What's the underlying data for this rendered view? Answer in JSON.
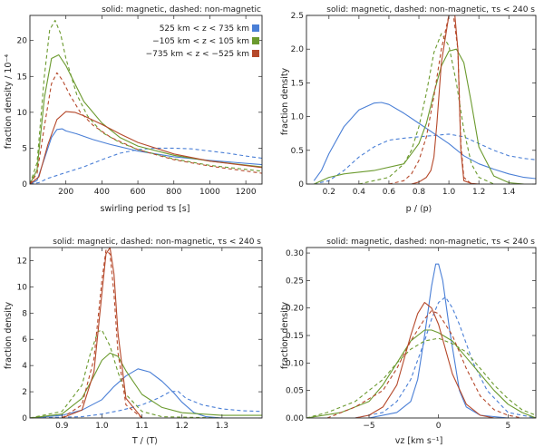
{
  "colors": {
    "blue": "#4a7fd6",
    "green": "#6b9a2e",
    "red": "#b5482a",
    "ink": "#222222"
  },
  "legend": {
    "items": [
      {
        "label": "525 km < z < 735 km",
        "color": "#4a7fd6"
      },
      {
        "label": "−105 km < z < 105 km",
        "color": "#6b9a2e"
      },
      {
        "label": "−735 km < z < −525 km",
        "color": "#b5482a"
      }
    ]
  },
  "chart_data": [
    {
      "type": "line",
      "title": "solid: magnetic, dashed: non-magnetic",
      "xlabel": "swirling period τs [s]",
      "ylabel": "fraction density / 10⁻⁴",
      "xlim": [
        0,
        1290
      ],
      "ylim": [
        0,
        23.5
      ],
      "xticks": [
        200,
        400,
        600,
        800,
        1000,
        1200
      ],
      "xtick_labels": [
        "200",
        "400",
        "600",
        "800",
        "1000",
        "1200"
      ],
      "yticks": [
        0,
        5,
        10,
        15,
        20
      ],
      "ytick_labels": [
        "0",
        "5",
        "10",
        "15",
        "20"
      ],
      "series": [
        {
          "name": "525 km < z < 735 km (magnetic)",
          "color": "blue",
          "dashed": false,
          "x": [
            0,
            40,
            80,
            120,
            150,
            180,
            200,
            260,
            350,
            450,
            600,
            800,
            1000,
            1290
          ],
          "y": [
            0,
            0.5,
            3.5,
            6.5,
            7.6,
            7.7,
            7.4,
            7.0,
            6.2,
            5.5,
            4.6,
            3.8,
            3.3,
            2.7
          ]
        },
        {
          "name": "525 km < z < 735 km (non-magnetic)",
          "color": "blue",
          "dashed": true,
          "x": [
            0,
            50,
            100,
            200,
            300,
            400,
            500,
            600,
            700,
            800,
            900,
            1000,
            1100,
            1200,
            1290
          ],
          "y": [
            0,
            0.2,
            0.8,
            1.6,
            2.4,
            3.4,
            4.3,
            4.8,
            5.0,
            5.0,
            4.9,
            4.6,
            4.3,
            3.9,
            3.6
          ]
        },
        {
          "name": "−105 km < z < 105 km (magnetic)",
          "color": "green",
          "dashed": false,
          "x": [
            0,
            40,
            80,
            120,
            160,
            200,
            250,
            300,
            400,
            500,
            600,
            800,
            1000,
            1290
          ],
          "y": [
            0,
            2.0,
            12.0,
            17.5,
            18.0,
            16.5,
            14.0,
            11.5,
            8.5,
            6.5,
            5.3,
            4.0,
            3.2,
            2.4
          ]
        },
        {
          "name": "−105 km < z < 105 km (non-magnetic)",
          "color": "green",
          "dashed": true,
          "x": [
            0,
            40,
            80,
            110,
            140,
            170,
            200,
            260,
            320,
            400,
            500,
            600,
            800,
            1000,
            1290
          ],
          "y": [
            0,
            3.0,
            15.0,
            21.5,
            22.8,
            21.0,
            17.5,
            12.5,
            9.5,
            7.2,
            5.8,
            4.8,
            3.5,
            2.6,
            1.8
          ]
        },
        {
          "name": "−735 km < z < −525 km (magnetic)",
          "color": "red",
          "dashed": false,
          "x": [
            0,
            50,
            100,
            150,
            200,
            250,
            300,
            400,
            500,
            600,
            800,
            1000,
            1290
          ],
          "y": [
            0,
            1.0,
            5.5,
            9.0,
            10.1,
            10.0,
            9.5,
            8.3,
            7.0,
            5.8,
            4.2,
            3.2,
            2.3
          ]
        },
        {
          "name": "−735 km < z < −525 km (non-magnetic)",
          "color": "red",
          "dashed": true,
          "x": [
            0,
            40,
            80,
            120,
            150,
            180,
            220,
            280,
            350,
            450,
            600,
            800,
            1000,
            1290
          ],
          "y": [
            0,
            1.5,
            8.0,
            14.0,
            15.5,
            14.5,
            12.5,
            10.0,
            8.2,
            6.5,
            4.8,
            3.4,
            2.5,
            1.5
          ]
        }
      ]
    },
    {
      "type": "line",
      "title": "solid: magnetic, dashed: non-magnetic, τs < 240 s",
      "xlabel": "p / ⟨p⟩",
      "ylabel": "fraction density",
      "xlim": [
        0.05,
        1.58
      ],
      "ylim": [
        0,
        2.5
      ],
      "xticks": [
        0.2,
        0.4,
        0.6,
        0.8,
        1.0,
        1.2,
        1.4
      ],
      "xtick_labels": [
        "0.2",
        "0.4",
        "0.6",
        "0.8",
        "1.0",
        "1.2",
        "1.4"
      ],
      "yticks": [
        0,
        0.5,
        1.0,
        1.5,
        2.0,
        2.5
      ],
      "ytick_labels": [
        "0",
        "0.5",
        "1.0",
        "1.5",
        "2.0",
        "2.5"
      ],
      "series": [
        {
          "name": "blue magnetic",
          "color": "blue",
          "dashed": false,
          "x": [
            0.1,
            0.15,
            0.2,
            0.3,
            0.4,
            0.5,
            0.55,
            0.6,
            0.7,
            0.8,
            0.9,
            1.0,
            1.1,
            1.2,
            1.3,
            1.4,
            1.5,
            1.58
          ],
          "y": [
            0.05,
            0.2,
            0.45,
            0.85,
            1.1,
            1.2,
            1.21,
            1.18,
            1.05,
            0.9,
            0.75,
            0.6,
            0.42,
            0.3,
            0.22,
            0.15,
            0.1,
            0.08
          ]
        },
        {
          "name": "blue non-magnetic",
          "color": "blue",
          "dashed": true,
          "x": [
            0.1,
            0.2,
            0.3,
            0.4,
            0.5,
            0.6,
            0.7,
            0.8,
            0.9,
            1.0,
            1.1,
            1.2,
            1.3,
            1.4,
            1.5,
            1.58
          ],
          "y": [
            0.0,
            0.05,
            0.2,
            0.4,
            0.55,
            0.65,
            0.68,
            0.7,
            0.72,
            0.74,
            0.7,
            0.6,
            0.5,
            0.42,
            0.38,
            0.36
          ]
        },
        {
          "name": "green magnetic",
          "color": "green",
          "dashed": false,
          "x": [
            0.1,
            0.2,
            0.3,
            0.5,
            0.7,
            0.8,
            0.85,
            0.9,
            0.95,
            1.0,
            1.05,
            1.1,
            1.15,
            1.2,
            1.3,
            1.4,
            1.5
          ],
          "y": [
            0.0,
            0.1,
            0.15,
            0.2,
            0.3,
            0.6,
            0.9,
            1.35,
            1.75,
            1.97,
            2.0,
            1.8,
            1.2,
            0.55,
            0.12,
            0.02,
            0.0
          ]
        },
        {
          "name": "green non-magnetic",
          "color": "green",
          "dashed": true,
          "x": [
            0.4,
            0.6,
            0.7,
            0.75,
            0.8,
            0.85,
            0.9,
            0.95,
            1.0,
            1.05,
            1.1,
            1.15,
            1.2,
            1.3
          ],
          "y": [
            0.0,
            0.1,
            0.3,
            0.5,
            0.85,
            1.35,
            1.95,
            2.23,
            2.05,
            1.5,
            0.8,
            0.3,
            0.1,
            0.0
          ]
        },
        {
          "name": "red magnetic",
          "color": "red",
          "dashed": false,
          "x": [
            0.75,
            0.8,
            0.85,
            0.88,
            0.9,
            0.92,
            0.95,
            1.0,
            1.04,
            1.06,
            1.08,
            1.1,
            1.15,
            1.2
          ],
          "y": [
            0.0,
            0.03,
            0.1,
            0.2,
            0.4,
            0.9,
            1.8,
            2.5,
            2.5,
            2.0,
            0.5,
            0.05,
            0.01,
            0.0
          ]
        },
        {
          "name": "red non-magnetic",
          "color": "red",
          "dashed": true,
          "x": [
            0.6,
            0.7,
            0.75,
            0.8,
            0.85,
            0.9,
            0.95,
            1.0,
            1.03,
            1.06,
            1.08,
            1.1,
            1.15
          ],
          "y": [
            0.0,
            0.05,
            0.15,
            0.35,
            0.7,
            1.3,
            2.0,
            2.5,
            2.5,
            2.0,
            0.6,
            0.1,
            0.0
          ]
        }
      ]
    },
    {
      "type": "line",
      "title": "solid: magnetic, dashed: non-magnetic, τs < 240 s",
      "xlabel": "T / ⟨T⟩",
      "ylabel": "fraction density",
      "xlim": [
        0.82,
        1.4
      ],
      "ylim": [
        0,
        13
      ],
      "xticks": [
        0.9,
        1.0,
        1.1,
        1.2,
        1.3
      ],
      "xtick_labels": [
        "0.9",
        "1.0",
        "1.1",
        "1.2",
        "1.3"
      ],
      "yticks": [
        0,
        2,
        4,
        6,
        8,
        10,
        12
      ],
      "ytick_labels": [
        "0",
        "2",
        "4",
        "6",
        "8",
        "10",
        "12"
      ],
      "series": [
        {
          "name": "blue magnetic",
          "color": "blue",
          "dashed": false,
          "x": [
            0.82,
            0.9,
            0.95,
            1.0,
            1.03,
            1.06,
            1.09,
            1.12,
            1.15,
            1.18,
            1.2,
            1.23,
            1.26,
            1.3,
            1.4
          ],
          "y": [
            0.0,
            0.2,
            0.6,
            1.4,
            2.4,
            3.2,
            3.75,
            3.5,
            2.8,
            1.9,
            1.2,
            0.4,
            0.1,
            0.0,
            0.0
          ]
        },
        {
          "name": "blue non-magnetic",
          "color": "blue",
          "dashed": true,
          "x": [
            0.82,
            0.95,
            1.0,
            1.05,
            1.1,
            1.14,
            1.17,
            1.19,
            1.21,
            1.25,
            1.3,
            1.35,
            1.4
          ],
          "y": [
            0.0,
            0.1,
            0.3,
            0.6,
            1.0,
            1.5,
            2.0,
            2.05,
            1.5,
            1.0,
            0.7,
            0.55,
            0.5
          ]
        },
        {
          "name": "green magnetic",
          "color": "green",
          "dashed": false,
          "x": [
            0.82,
            0.9,
            0.95,
            0.98,
            1.0,
            1.02,
            1.04,
            1.06,
            1.1,
            1.15,
            1.2,
            1.3,
            1.4
          ],
          "y": [
            0.0,
            0.3,
            1.5,
            3.2,
            4.4,
            4.95,
            4.7,
            3.6,
            1.8,
            0.8,
            0.4,
            0.2,
            0.2
          ]
        },
        {
          "name": "green non-magnetic",
          "color": "green",
          "dashed": true,
          "x": [
            0.82,
            0.9,
            0.95,
            0.97,
            0.99,
            1.0,
            1.02,
            1.04,
            1.06,
            1.1,
            1.15,
            1.3
          ],
          "y": [
            0.0,
            0.5,
            2.5,
            4.8,
            6.6,
            6.7,
            5.5,
            3.5,
            1.8,
            0.5,
            0.1,
            0.0
          ]
        },
        {
          "name": "red magnetic",
          "color": "red",
          "dashed": false,
          "x": [
            0.9,
            0.95,
            0.98,
            1.0,
            1.01,
            1.02,
            1.03,
            1.04,
            1.06,
            1.1
          ],
          "y": [
            0.0,
            0.6,
            3.5,
            9.5,
            12.5,
            13.0,
            11.0,
            6.5,
            1.5,
            0.0
          ]
        },
        {
          "name": "red non-magnetic",
          "color": "red",
          "dashed": true,
          "x": [
            0.9,
            0.95,
            0.98,
            1.0,
            1.01,
            1.02,
            1.03,
            1.04,
            1.06,
            1.1
          ],
          "y": [
            0.0,
            1.0,
            4.5,
            10.5,
            12.8,
            12.5,
            9.5,
            5.0,
            1.0,
            0.0
          ]
        }
      ]
    },
    {
      "type": "line",
      "title": "solid: magnetic, dashed: non-magnetic, τs < 240 s",
      "xlabel": "vz [km s⁻¹]",
      "ylabel": "fraction density",
      "xlim": [
        -9.5,
        7
      ],
      "ylim": [
        0,
        0.31
      ],
      "xticks": [
        -5,
        0,
        5
      ],
      "xtick_labels": [
        "−5",
        "0",
        "5"
      ],
      "yticks": [
        0,
        0.05,
        0.1,
        0.15,
        0.2,
        0.25,
        0.3
      ],
      "ytick_labels": [
        "0.00",
        "0.05",
        "0.10",
        "0.15",
        "0.20",
        "0.25",
        "0.30"
      ],
      "series": [
        {
          "name": "blue magnetic",
          "color": "blue",
          "dashed": false,
          "x": [
            -5,
            -3,
            -2,
            -1.5,
            -1,
            -0.5,
            -0.2,
            0,
            0.3,
            0.8,
            1.5,
            2,
            3,
            5
          ],
          "y": [
            0.0,
            0.01,
            0.03,
            0.07,
            0.15,
            0.24,
            0.28,
            0.28,
            0.25,
            0.16,
            0.05,
            0.02,
            0.005,
            0.0
          ]
        },
        {
          "name": "blue non-magnetic",
          "color": "blue",
          "dashed": true,
          "x": [
            -6,
            -4,
            -3,
            -2,
            -1,
            -0.5,
            0,
            0.5,
            1,
            1.5,
            2.5,
            3.5,
            5,
            7
          ],
          "y": [
            0.0,
            0.01,
            0.03,
            0.07,
            0.14,
            0.18,
            0.21,
            0.22,
            0.2,
            0.17,
            0.1,
            0.05,
            0.01,
            0.0
          ]
        },
        {
          "name": "green magnetic",
          "color": "green",
          "dashed": false,
          "x": [
            -9.5,
            -7,
            -5,
            -4,
            -3,
            -2,
            -1,
            -0.5,
            0,
            1,
            2,
            3,
            4,
            5,
            6,
            7
          ],
          "y": [
            0.0,
            0.01,
            0.03,
            0.06,
            0.1,
            0.14,
            0.16,
            0.16,
            0.155,
            0.14,
            0.11,
            0.08,
            0.05,
            0.025,
            0.01,
            0.0
          ]
        },
        {
          "name": "green non-magnetic",
          "color": "green",
          "dashed": true,
          "x": [
            -9.5,
            -8,
            -6,
            -4,
            -3,
            -2,
            -1,
            0,
            1,
            2,
            3,
            4,
            5,
            6,
            7
          ],
          "y": [
            0.0,
            0.01,
            0.03,
            0.07,
            0.1,
            0.125,
            0.14,
            0.145,
            0.135,
            0.12,
            0.09,
            0.06,
            0.035,
            0.015,
            0.005
          ]
        },
        {
          "name": "red magnetic",
          "color": "red",
          "dashed": false,
          "x": [
            -6,
            -5,
            -4,
            -3,
            -2,
            -1.5,
            -1,
            -0.5,
            0,
            1,
            2,
            3,
            4
          ],
          "y": [
            0.0,
            0.005,
            0.02,
            0.06,
            0.15,
            0.19,
            0.21,
            0.2,
            0.17,
            0.08,
            0.025,
            0.005,
            0.0
          ]
        },
        {
          "name": "red non-magnetic",
          "color": "red",
          "dashed": true,
          "x": [
            -8,
            -6,
            -4,
            -3,
            -2,
            -1,
            -0.5,
            0,
            1,
            2,
            3,
            4,
            5,
            6
          ],
          "y": [
            0.0,
            0.02,
            0.05,
            0.09,
            0.14,
            0.18,
            0.195,
            0.19,
            0.15,
            0.09,
            0.04,
            0.015,
            0.005,
            0.0
          ]
        }
      ]
    }
  ]
}
